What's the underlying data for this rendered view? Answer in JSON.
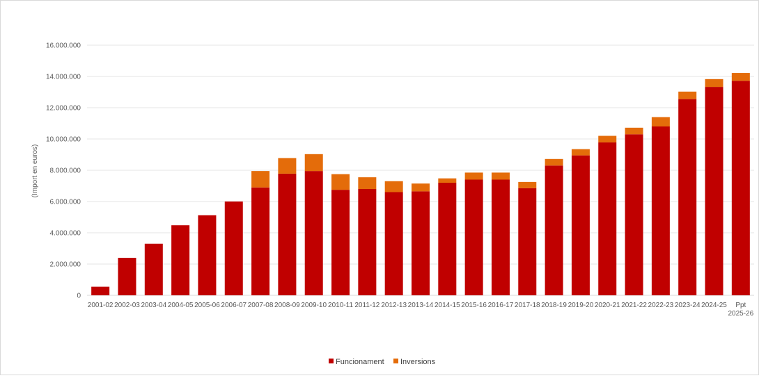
{
  "chart_data": {
    "type": "bar",
    "stacked": true,
    "title": "",
    "xlabel": "",
    "ylabel": "(Import en euros)",
    "ylim": [
      0,
      16000000
    ],
    "yticks": [
      0,
      2000000,
      4000000,
      6000000,
      8000000,
      10000000,
      12000000,
      14000000,
      16000000
    ],
    "ytick_labels": [
      "0",
      "2.000.000",
      "4.000.000",
      "6.000.000",
      "8.000.000",
      "10.000.000",
      "12.000.000",
      "14.000.000",
      "16.000.000"
    ],
    "grid": true,
    "legend_position": "bottom-center",
    "categories": [
      "2001-02",
      "2002-03",
      "2003-04",
      "2004-05",
      "2005-06",
      "2006-07",
      "2007-08",
      "2008-09",
      "2009-10",
      "2010-11",
      "2011-12",
      "2012-13",
      "2013-14",
      "2014-15",
      "2015-16",
      "2016-17",
      "2017-18",
      "2018-19",
      "2019-20",
      "2020-21",
      "2021-22",
      "2022-23",
      "2023-24",
      "2024-25",
      "Ppt 2025-26"
    ],
    "series": [
      {
        "name": "Funcionament",
        "color": "#c00000",
        "values": [
          550000,
          2400000,
          3300000,
          4480000,
          5120000,
          6000000,
          6900000,
          7780000,
          7950000,
          6750000,
          6800000,
          6600000,
          6650000,
          7200000,
          7400000,
          7400000,
          6850000,
          8300000,
          8950000,
          9780000,
          10300000,
          10800000,
          12550000,
          13330000,
          13720000
        ]
      },
      {
        "name": "Inversions",
        "color": "#e46c0a",
        "values": [
          0,
          0,
          0,
          0,
          0,
          0,
          1050000,
          1000000,
          1080000,
          1000000,
          750000,
          700000,
          500000,
          280000,
          450000,
          450000,
          400000,
          420000,
          400000,
          420000,
          420000,
          600000,
          480000,
          500000,
          500000
        ]
      }
    ]
  }
}
